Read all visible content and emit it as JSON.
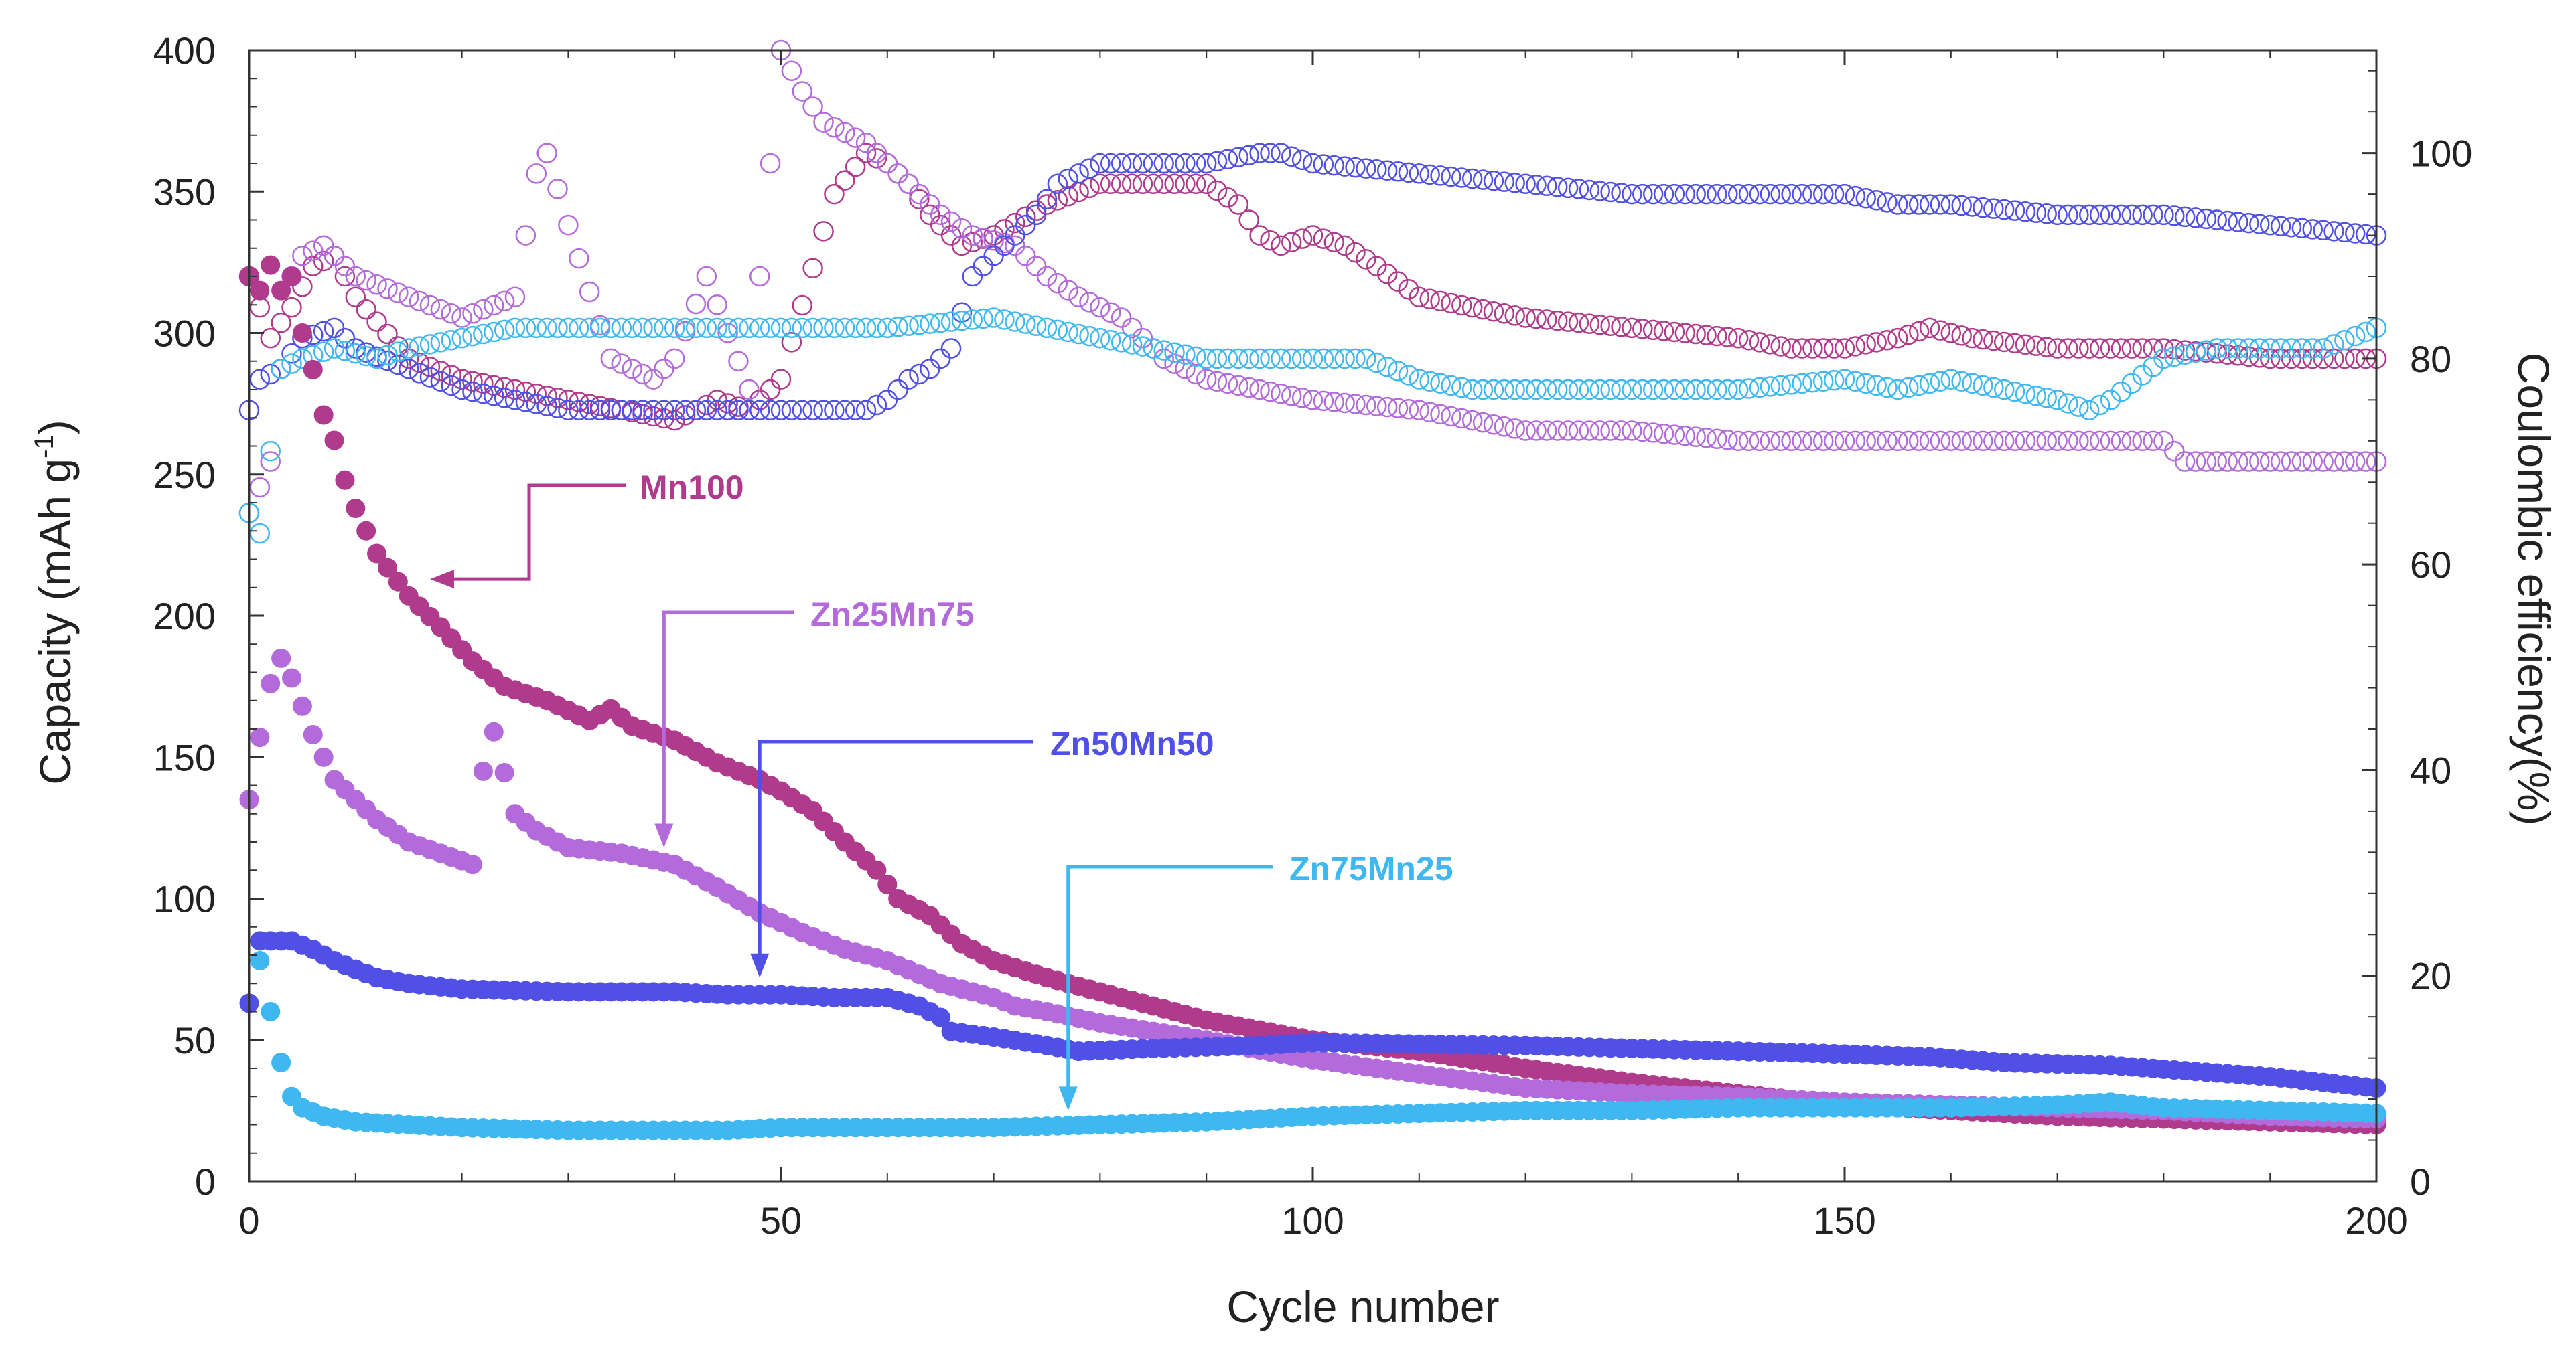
{
  "chart_data": {
    "type": "scatter",
    "title": "",
    "xlabel": "Cycle number",
    "ylabel_left": "Capacity (mAh g",
    "ylabel_left_sup": "-1",
    "ylabel_left_end": ")",
    "ylabel_right": "Coulombic efficiency(%)",
    "xlim": [
      0,
      200
    ],
    "ylim_left": [
      0,
      400
    ],
    "ylim_right": [
      0,
      110
    ],
    "xticks": [
      "0",
      "50",
      "100",
      "150",
      "200"
    ],
    "yticks_left": [
      "0",
      "50",
      "100",
      "150",
      "200",
      "250",
      "300",
      "350",
      "400"
    ],
    "yticks_right": [
      "0",
      "20",
      "40",
      "60",
      "80",
      "100"
    ],
    "legend": "arrow annotations inside plot",
    "series": [
      {
        "name": "Mn100",
        "color": "#B03A8C",
        "capacity_keypoints": [
          [
            0,
            320
          ],
          [
            1,
            315
          ],
          [
            2,
            324
          ],
          [
            3,
            315
          ],
          [
            4,
            320
          ],
          [
            5,
            300
          ],
          [
            6,
            287
          ],
          [
            7,
            271
          ],
          [
            8,
            262
          ],
          [
            9,
            248
          ],
          [
            10,
            238
          ],
          [
            12,
            222
          ],
          [
            15,
            207
          ],
          [
            18,
            196
          ],
          [
            21,
            184
          ],
          [
            24,
            175
          ],
          [
            28,
            170
          ],
          [
            32,
            163
          ],
          [
            34,
            167
          ],
          [
            36,
            161
          ],
          [
            40,
            156
          ],
          [
            44,
            148
          ],
          [
            48,
            142
          ],
          [
            50,
            138
          ],
          [
            53,
            131
          ],
          [
            56,
            120
          ],
          [
            59,
            110
          ],
          [
            61,
            100
          ],
          [
            64,
            94
          ],
          [
            67,
            84
          ],
          [
            70,
            78
          ],
          [
            75,
            72
          ],
          [
            80,
            67
          ],
          [
            85,
            62
          ],
          [
            90,
            57
          ],
          [
            100,
            50
          ],
          [
            110,
            46
          ],
          [
            120,
            40
          ],
          [
            130,
            35
          ],
          [
            140,
            31
          ],
          [
            150,
            27
          ],
          [
            160,
            25
          ],
          [
            170,
            23
          ],
          [
            180,
            22
          ],
          [
            190,
            21
          ],
          [
            200,
            20
          ]
        ],
        "ce_keypoints": [
          [
            0,
            88
          ],
          [
            2,
            82
          ],
          [
            4,
            85
          ],
          [
            6,
            89
          ],
          [
            8,
            90
          ],
          [
            10,
            86
          ],
          [
            15,
            80
          ],
          [
            20,
            78
          ],
          [
            25,
            77
          ],
          [
            30,
            76
          ],
          [
            35,
            75
          ],
          [
            40,
            74
          ],
          [
            44,
            76
          ],
          [
            47,
            75
          ],
          [
            50,
            78
          ],
          [
            55,
            96
          ],
          [
            58,
            100
          ],
          [
            60,
            99
          ],
          [
            62,
            97
          ],
          [
            64,
            94
          ],
          [
            67,
            91
          ],
          [
            70,
            92
          ],
          [
            75,
            95
          ],
          [
            80,
            97
          ],
          [
            85,
            97
          ],
          [
            90,
            97
          ],
          [
            93,
            95
          ],
          [
            95,
            92
          ],
          [
            97,
            91
          ],
          [
            100,
            92
          ],
          [
            103,
            91
          ],
          [
            106,
            89
          ],
          [
            110,
            86
          ],
          [
            115,
            85
          ],
          [
            120,
            84
          ],
          [
            130,
            83
          ],
          [
            140,
            82
          ],
          [
            145,
            81
          ],
          [
            150,
            81
          ],
          [
            155,
            82
          ],
          [
            158,
            83
          ],
          [
            162,
            82
          ],
          [
            170,
            81
          ],
          [
            180,
            81
          ],
          [
            190,
            80
          ],
          [
            200,
            80
          ]
        ]
      },
      {
        "name": "Zn25Mn75",
        "color": "#B36ADB",
        "capacity_keypoints": [
          [
            0,
            135
          ],
          [
            1,
            157
          ],
          [
            2,
            176
          ],
          [
            3,
            185
          ],
          [
            4,
            178
          ],
          [
            5,
            168
          ],
          [
            6,
            158
          ],
          [
            7,
            150
          ],
          [
            8,
            142
          ],
          [
            10,
            135
          ],
          [
            12,
            128
          ],
          [
            15,
            120
          ],
          [
            18,
            116
          ],
          [
            21,
            112
          ],
          [
            22,
            145
          ],
          [
            23,
            159
          ],
          [
            25,
            130
          ],
          [
            27,
            124
          ],
          [
            30,
            118
          ],
          [
            35,
            116
          ],
          [
            40,
            112
          ],
          [
            44,
            104
          ],
          [
            48,
            95
          ],
          [
            52,
            88
          ],
          [
            56,
            82
          ],
          [
            60,
            78
          ],
          [
            65,
            70
          ],
          [
            70,
            65
          ],
          [
            72,
            62
          ],
          [
            75,
            60
          ],
          [
            80,
            56
          ],
          [
            85,
            53
          ],
          [
            90,
            50
          ],
          [
            100,
            43
          ],
          [
            110,
            38
          ],
          [
            120,
            33
          ],
          [
            130,
            31
          ],
          [
            140,
            30
          ],
          [
            150,
            28
          ],
          [
            160,
            27
          ],
          [
            170,
            26
          ],
          [
            180,
            25
          ],
          [
            190,
            23
          ],
          [
            200,
            22
          ]
        ],
        "ce_keypoints": [
          [
            0,
            65
          ],
          [
            2,
            70
          ],
          [
            4,
            88
          ],
          [
            5,
            90
          ],
          [
            7,
            91
          ],
          [
            10,
            88
          ],
          [
            15,
            86
          ],
          [
            20,
            84
          ],
          [
            25,
            86
          ],
          [
            27,
            98
          ],
          [
            28,
            100
          ],
          [
            30,
            93
          ],
          [
            34,
            80
          ],
          [
            38,
            78
          ],
          [
            40,
            80
          ],
          [
            43,
            88
          ],
          [
            47,
            77
          ],
          [
            50,
            110
          ],
          [
            52,
            106
          ],
          [
            54,
            103
          ],
          [
            56,
            102
          ],
          [
            58,
            101
          ],
          [
            60,
            99
          ],
          [
            62,
            97
          ],
          [
            65,
            94
          ],
          [
            68,
            92
          ],
          [
            72,
            91
          ],
          [
            75,
            88
          ],
          [
            78,
            86
          ],
          [
            82,
            84
          ],
          [
            86,
            80
          ],
          [
            90,
            78
          ],
          [
            95,
            77
          ],
          [
            100,
            76
          ],
          [
            110,
            75
          ],
          [
            120,
            73
          ],
          [
            130,
            73
          ],
          [
            140,
            72
          ],
          [
            150,
            72
          ],
          [
            170,
            72
          ],
          [
            180,
            72
          ],
          [
            182,
            70
          ],
          [
            190,
            70
          ],
          [
            200,
            70
          ]
        ]
      },
      {
        "name": "Zn50Mn50",
        "color": "#5050E6",
        "capacity_keypoints": [
          [
            0,
            63
          ],
          [
            1,
            85
          ],
          [
            4,
            85
          ],
          [
            6,
            82
          ],
          [
            8,
            78
          ],
          [
            10,
            75
          ],
          [
            12,
            72
          ],
          [
            15,
            70
          ],
          [
            20,
            68
          ],
          [
            30,
            67
          ],
          [
            40,
            67
          ],
          [
            45,
            66
          ],
          [
            48,
            66
          ],
          [
            50,
            66
          ],
          [
            55,
            65
          ],
          [
            60,
            65
          ],
          [
            63,
            62
          ],
          [
            65,
            58
          ],
          [
            66,
            53
          ],
          [
            70,
            51
          ],
          [
            75,
            48
          ],
          [
            78,
            46
          ],
          [
            85,
            47
          ],
          [
            95,
            48
          ],
          [
            100,
            49
          ],
          [
            120,
            48
          ],
          [
            140,
            46
          ],
          [
            150,
            45
          ],
          [
            158,
            44
          ],
          [
            165,
            42
          ],
          [
            175,
            41
          ],
          [
            190,
            37
          ],
          [
            200,
            33
          ]
        ],
        "ce_keypoints": [
          [
            0,
            75
          ],
          [
            1,
            78
          ],
          [
            3,
            79
          ],
          [
            5,
            82
          ],
          [
            8,
            83
          ],
          [
            10,
            81
          ],
          [
            15,
            79
          ],
          [
            20,
            77
          ],
          [
            25,
            76
          ],
          [
            30,
            75
          ],
          [
            40,
            75
          ],
          [
            50,
            75
          ],
          [
            58,
            75
          ],
          [
            60,
            76
          ],
          [
            62,
            78
          ],
          [
            64,
            79
          ],
          [
            66,
            81
          ],
          [
            68,
            88
          ],
          [
            70,
            90
          ],
          [
            72,
            92
          ],
          [
            74,
            94
          ],
          [
            76,
            97
          ],
          [
            80,
            99
          ],
          [
            85,
            99
          ],
          [
            90,
            99
          ],
          [
            95,
            100
          ],
          [
            97,
            100
          ],
          [
            100,
            99
          ],
          [
            110,
            98
          ],
          [
            120,
            97
          ],
          [
            130,
            96
          ],
          [
            140,
            96
          ],
          [
            150,
            96
          ],
          [
            155,
            95
          ],
          [
            160,
            95
          ],
          [
            170,
            94
          ],
          [
            180,
            94
          ],
          [
            190,
            93
          ],
          [
            200,
            92
          ]
        ]
      },
      {
        "name": "Zn75Mn25",
        "color": "#3FB8F2",
        "capacity_keypoints": [
          [
            1,
            78
          ],
          [
            3,
            42
          ],
          [
            4,
            30
          ],
          [
            5,
            26
          ],
          [
            7,
            23
          ],
          [
            10,
            21
          ],
          [
            15,
            20
          ],
          [
            20,
            19
          ],
          [
            30,
            18
          ],
          [
            40,
            18
          ],
          [
            45,
            18
          ],
          [
            50,
            19
          ],
          [
            60,
            19
          ],
          [
            70,
            19
          ],
          [
            80,
            20
          ],
          [
            90,
            21
          ],
          [
            100,
            23
          ],
          [
            110,
            24
          ],
          [
            120,
            25
          ],
          [
            130,
            25
          ],
          [
            140,
            26
          ],
          [
            150,
            26
          ],
          [
            160,
            26
          ],
          [
            170,
            27
          ],
          [
            175,
            28
          ],
          [
            180,
            26
          ],
          [
            190,
            25
          ],
          [
            200,
            24
          ]
        ],
        "ce_keypoints": [
          [
            0,
            65
          ],
          [
            1,
            63
          ],
          [
            3,
            79
          ],
          [
            5,
            80
          ],
          [
            8,
            81
          ],
          [
            12,
            80
          ],
          [
            15,
            81
          ],
          [
            20,
            82
          ],
          [
            25,
            83
          ],
          [
            30,
            83
          ],
          [
            40,
            83
          ],
          [
            50,
            83
          ],
          [
            60,
            83
          ],
          [
            70,
            84
          ],
          [
            75,
            83
          ],
          [
            80,
            82
          ],
          [
            85,
            81
          ],
          [
            90,
            80
          ],
          [
            95,
            80
          ],
          [
            100,
            80
          ],
          [
            105,
            80
          ],
          [
            110,
            78
          ],
          [
            115,
            77
          ],
          [
            120,
            77
          ],
          [
            125,
            77
          ],
          [
            130,
            77
          ],
          [
            140,
            77
          ],
          [
            150,
            78
          ],
          [
            155,
            77
          ],
          [
            160,
            78
          ],
          [
            165,
            77
          ],
          [
            170,
            76
          ],
          [
            173,
            75
          ],
          [
            175,
            76
          ],
          [
            180,
            80
          ],
          [
            185,
            81
          ],
          [
            190,
            81
          ],
          [
            195,
            81
          ],
          [
            200,
            83
          ]
        ]
      }
    ],
    "annotations": [
      {
        "text": "Mn100",
        "color": "#B03A8C",
        "points_to": [
          17,
          213
        ]
      },
      {
        "text": "Zn25Mn75",
        "color": "#B36ADB",
        "points_to": [
          39,
          118
        ]
      },
      {
        "text": "Zn50Mn50",
        "color": "#5050E6",
        "points_to": [
          48,
          72
        ]
      },
      {
        "text": "Zn75Mn25",
        "color": "#3FB8F2",
        "points_to": [
          77,
          25
        ]
      }
    ]
  }
}
